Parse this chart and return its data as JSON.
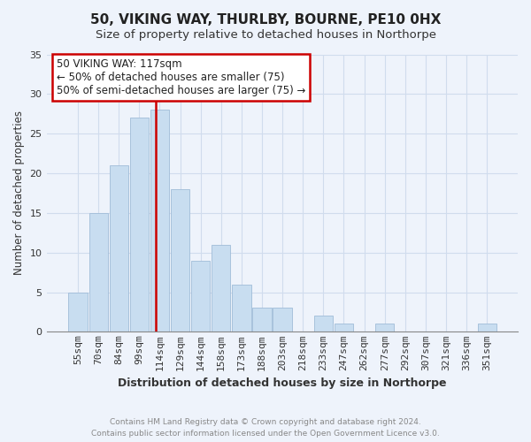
{
  "title": "50, VIKING WAY, THURLBY, BOURNE, PE10 0HX",
  "subtitle": "Size of property relative to detached houses in Northorpe",
  "xlabel": "Distribution of detached houses by size in Northorpe",
  "ylabel": "Number of detached properties",
  "bin_labels": [
    "55sqm",
    "70sqm",
    "84sqm",
    "99sqm",
    "114sqm",
    "129sqm",
    "144sqm",
    "158sqm",
    "173sqm",
    "188sqm",
    "203sqm",
    "218sqm",
    "233sqm",
    "247sqm",
    "262sqm",
    "277sqm",
    "292sqm",
    "307sqm",
    "321sqm",
    "336sqm",
    "351sqm"
  ],
  "values": [
    5,
    15,
    21,
    27,
    28,
    18,
    9,
    11,
    6,
    3,
    3,
    0,
    2,
    1,
    0,
    1,
    0,
    0,
    0,
    0,
    1
  ],
  "bar_color": "#c8ddf0",
  "bar_edge_color": "#a0bcd8",
  "vline_color": "#cc0000",
  "vline_x": 3.8,
  "annotation_text": "50 VIKING WAY: 117sqm\n← 50% of detached houses are smaller (75)\n50% of semi-detached houses are larger (75) →",
  "annotation_box_color": "white",
  "annotation_box_edge_color": "#cc0000",
  "ylim": [
    0,
    35
  ],
  "yticks": [
    0,
    5,
    10,
    15,
    20,
    25,
    30,
    35
  ],
  "footer_line1": "Contains HM Land Registry data © Crown copyright and database right 2024.",
  "footer_line2": "Contains public sector information licensed under the Open Government Licence v3.0.",
  "background_color": "#eef3fb",
  "grid_color": "#d0dced",
  "title_fontsize": 11,
  "subtitle_fontsize": 9.5,
  "ylabel_fontsize": 8.5,
  "xlabel_fontsize": 9,
  "tick_fontsize": 8,
  "annot_fontsize": 8.5,
  "footer_fontsize": 6.5
}
